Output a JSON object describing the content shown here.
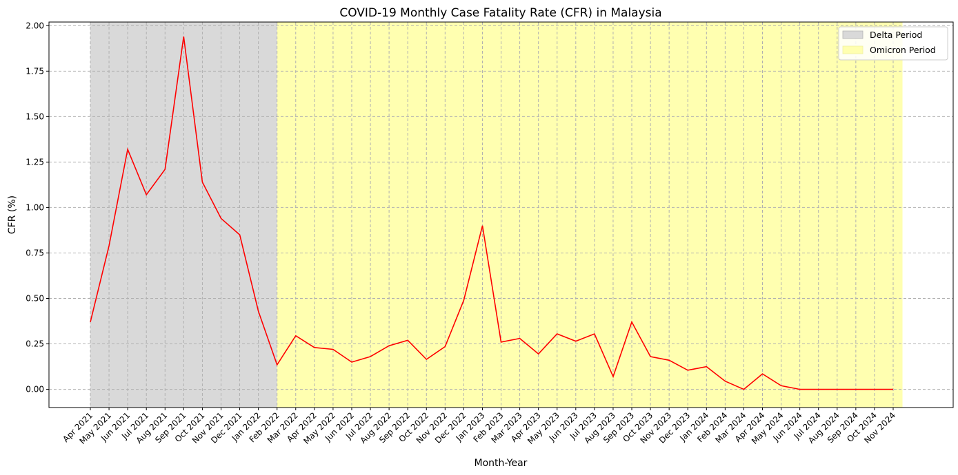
{
  "chart_data": {
    "type": "line",
    "title": "COVID-19 Monthly Case Fatality Rate (CFR) in Malaysia",
    "xlabel": "Month-Year",
    "ylabel": "CFR (%)",
    "ylim": [
      -0.1,
      2.02
    ],
    "yticks": [
      "0.00",
      "0.25",
      "0.50",
      "0.75",
      "1.00",
      "1.25",
      "1.50",
      "1.75",
      "2.00"
    ],
    "grid": true,
    "legend_position": "top-right",
    "categories": [
      "Apr 2021",
      "May 2021",
      "Jun 2021",
      "Jul 2021",
      "Aug 2021",
      "Sep 2021",
      "Oct 2021",
      "Nov 2021",
      "Dec 2021",
      "Jan 2022",
      "Feb 2022",
      "Mar 2022",
      "Apr 2022",
      "May 2022",
      "Jun 2022",
      "Jul 2022",
      "Aug 2022",
      "Sep 2022",
      "Oct 2022",
      "Nov 2022",
      "Dec 2022",
      "Jan 2023",
      "Feb 2023",
      "Mar 2023",
      "Apr 2023",
      "May 2023",
      "Jun 2023",
      "Jul 2023",
      "Aug 2023",
      "Sep 2023",
      "Oct 2023",
      "Nov 2023",
      "Dec 2023",
      "Jan 2024",
      "Feb 2024",
      "Mar 2024",
      "Apr 2024",
      "May 2024",
      "Jun 2024",
      "Jul 2024",
      "Aug 2024",
      "Sep 2024",
      "Oct 2024",
      "Nov 2024"
    ],
    "series": [
      {
        "color": "#ff0000",
        "values": [
          0.37,
          0.79,
          1.32,
          1.07,
          1.21,
          1.94,
          1.14,
          0.94,
          0.85,
          0.43,
          0.135,
          0.295,
          0.23,
          0.22,
          0.15,
          0.18,
          0.24,
          0.27,
          0.165,
          0.235,
          0.49,
          0.9,
          0.26,
          0.28,
          0.195,
          0.305,
          0.265,
          0.305,
          0.07,
          0.37,
          0.18,
          0.16,
          0.105,
          0.125,
          0.045,
          0.0,
          0.085,
          0.02,
          0.0,
          0.0,
          0.0,
          0.0,
          0.0,
          0.0
        ]
      }
    ],
    "shaded_regions": [
      {
        "name": "Delta Period",
        "start": "Apr 2021",
        "end": "Feb 2022",
        "color": "#d9d9d9"
      },
      {
        "name": "Omicron Period",
        "start": "Feb 2022",
        "end_offset": 0.5,
        "end": "Nov 2024",
        "color": "#ffffb0"
      }
    ]
  }
}
